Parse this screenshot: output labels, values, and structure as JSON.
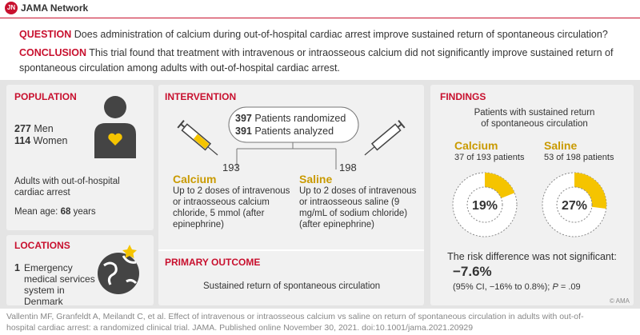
{
  "header": {
    "logo": "JN",
    "brand": "JAMA Network"
  },
  "question": {
    "label": "QUESTION",
    "text": "Does administration of calcium during out-of-hospital cardiac arrest improve sustained return of spontaneous circulation?"
  },
  "conclusion": {
    "label": "CONCLUSION",
    "text": "This trial found that treatment with intravenous or intraosseous calcium did not significantly improve sustained return of spontaneous circulation among adults with out-of-hospital cardiac arrest."
  },
  "population": {
    "title": "POPULATION",
    "men_count": "277",
    "men_label": "Men",
    "women_count": "114",
    "women_label": "Women",
    "description": "Adults with out-of-hospital cardiac arrest",
    "age_label": "Mean age:",
    "age_value": "68",
    "age_unit": "years"
  },
  "locations": {
    "title": "LOCATIONS",
    "count": "1",
    "text": "Emergency medical services system in Denmark"
  },
  "intervention": {
    "title": "INTERVENTION",
    "randomized_count": "397",
    "randomized_label": "Patients randomized",
    "analyzed_count": "391",
    "analyzed_label": "Patients analyzed",
    "arms": [
      {
        "count": "193",
        "name": "Calcium",
        "text": "Up to 2 doses of intravenous or intraosseous calcium chloride, 5 mmol (after epinephrine)"
      },
      {
        "count": "198",
        "name": "Saline",
        "text": "Up to 2 doses of intravenous or intraosseous saline (9 mg/mL of sodium chloride) (after epinephrine)"
      }
    ]
  },
  "primary_outcome": {
    "title": "PRIMARY OUTCOME",
    "text": "Sustained return of spontaneous circulation"
  },
  "findings": {
    "title": "FINDINGS",
    "subtitle": "Patients with sustained return of spontaneous circulation",
    "groups": [
      {
        "name": "Calcium",
        "detail": "37 of 193 patients",
        "value": 19,
        "value_label": "19%"
      },
      {
        "name": "Saline",
        "detail": "53 of 198 patients",
        "value": 27,
        "value_label": "27%"
      }
    ],
    "risk_text": "The risk difference was not significant:",
    "risk_value": "−7.6%",
    "ci_text": "(95% CI, −16% to 0.8%);",
    "p_label": "P",
    "p_text": "= .09"
  },
  "footer": {
    "citation": "Vallentin MF, Granfeldt A, Meilandt C, et al. Effect of intravenous or intraosseous calcium vs saline on return of spontaneous circulation in adults with out-of-hospital cardiac arrest: a randomized clinical trial. JAMA. Published online November 30, 2021. doi:10.1001/jama.2021.20929",
    "copyright": "© AMA"
  }
}
